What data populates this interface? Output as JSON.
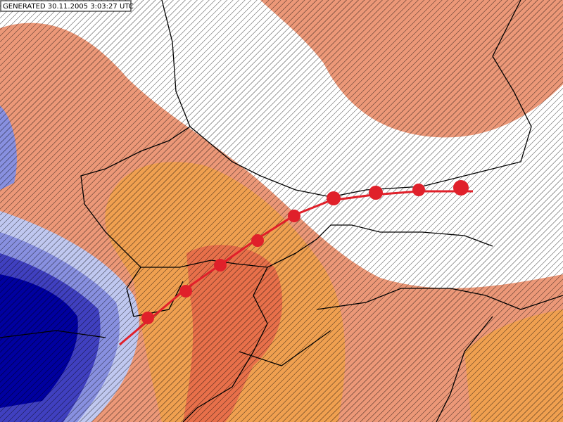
{
  "header": {
    "label": "GENERATED 30.11.2005 3:03:27 UTC"
  }
}
